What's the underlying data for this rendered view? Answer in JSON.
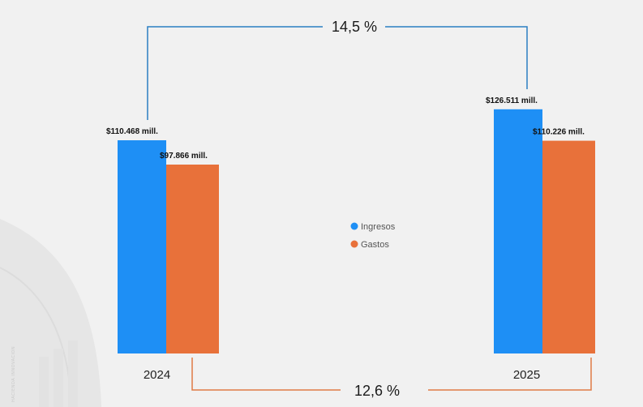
{
  "chart_data": {
    "type": "bar",
    "categories": [
      "2024",
      "2025"
    ],
    "series": [
      {
        "name": "Ingresos",
        "values": [
          110468,
          126511
        ],
        "labels": [
          "$110.468 mill.",
          "$126.511 mill."
        ],
        "color": "#1e8ff5"
      },
      {
        "name": "Gastos",
        "values": [
          97866,
          110226
        ],
        "labels": [
          "$97.866 mill.",
          "$110.226 mill."
        ],
        "color": "#e8713a"
      }
    ],
    "ylim": [
      0,
      130000
    ],
    "legend_position": "center",
    "grid": false,
    "annotations": {
      "ingresos_growth": {
        "text": "14,5 %",
        "color": "#2b7fc2",
        "placement": "top"
      },
      "gastos_growth": {
        "text": "12,6 %",
        "color": "#e07a45",
        "placement": "bottom"
      }
    }
  },
  "watermark": {
    "text": "HACIENDA INNOVACION"
  },
  "colors": {
    "background": "#f1f1f1",
    "arc": "#e6e6e6",
    "axis_text": "#222222"
  }
}
